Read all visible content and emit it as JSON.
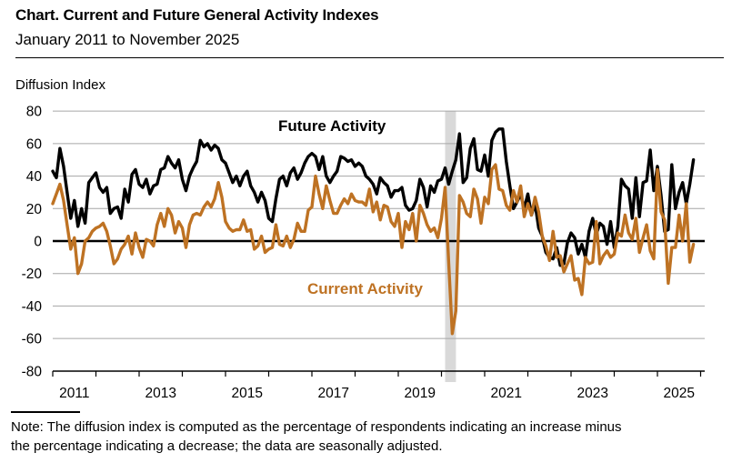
{
  "header": {
    "title": "Chart. Current and Future General Activity Indexes",
    "subtitle": "January 2011 to November 2025"
  },
  "chart": {
    "ylabel": "Diffusion Index",
    "series_labels": {
      "future": "Future Activity",
      "current": "Current Activity"
    },
    "colors": {
      "future_line": "#000000",
      "current_line": "#BE7223",
      "recession_band": "#D9D9D9",
      "gridline": "#A6A6A6",
      "zero_line": "#000000"
    },
    "yticks": [
      80,
      60,
      40,
      20,
      0,
      -20,
      -40,
      -60,
      -80
    ],
    "year_tick_years": [
      2011,
      2012,
      2013,
      2014,
      2015,
      2016,
      2017,
      2018,
      2019,
      2020,
      2021,
      2022,
      2023,
      2024,
      2025,
      2026
    ],
    "year_labels": [
      "2011",
      "2013",
      "2015",
      "2017",
      "2019",
      "2021",
      "2023",
      "2025"
    ]
  },
  "chart_data": {
    "type": "line",
    "x_unit": "month",
    "x_start": "2011-01",
    "x_end": "2025-11",
    "ylim": [
      -80,
      80
    ],
    "grid": true,
    "legend_position": "inline-labels",
    "recession_band": {
      "from": "2020-02",
      "to": "2020-05"
    },
    "series": [
      {
        "name": "Future Activity",
        "color": "#000000",
        "values": [
          43,
          39,
          57,
          46,
          30,
          14,
          25,
          9,
          20,
          11,
          36,
          39,
          42,
          33,
          30,
          33,
          17,
          20,
          21,
          14,
          32,
          24,
          41,
          44,
          35,
          33,
          38,
          29,
          34,
          35,
          44,
          45,
          52,
          48,
          45,
          50,
          38,
          31,
          40,
          45,
          49,
          62,
          58,
          60,
          56,
          59,
          57,
          50,
          48,
          42,
          36,
          40,
          34,
          40,
          43,
          34,
          30,
          24,
          30,
          25,
          14,
          12,
          26,
          38,
          40,
          34,
          42,
          45,
          38,
          42,
          48,
          52,
          54,
          52,
          44,
          52,
          40,
          36,
          40,
          43,
          52,
          51,
          49,
          50,
          46,
          48,
          46,
          40,
          38,
          35,
          29,
          39,
          36,
          34,
          27,
          31,
          31,
          33,
          22,
          19,
          20,
          25,
          38,
          33,
          21,
          34,
          30,
          37,
          38,
          45,
          35,
          43,
          50,
          66,
          36,
          39,
          57,
          63,
          44,
          43,
          53,
          40,
          62,
          67,
          69,
          69,
          49,
          34,
          20,
          24,
          29,
          20,
          29,
          16,
          23,
          8,
          3,
          -7,
          -10,
          -11,
          -4,
          -15,
          -14,
          -1,
          5,
          2,
          -8,
          -2,
          -10,
          6,
          14,
          4,
          11,
          9,
          -2,
          12,
          -4,
          9,
          38,
          34,
          32,
          14,
          39,
          15,
          36,
          37,
          56,
          31,
          46,
          28,
          6,
          7,
          47,
          20,
          30,
          36,
          23,
          35,
          50
        ]
      },
      {
        "name": "Current Activity",
        "color": "#BE7223",
        "values": [
          23,
          29,
          35,
          25,
          10,
          -5,
          2,
          -20,
          -14,
          0,
          2,
          6,
          8,
          9,
          11,
          6,
          -3,
          -14,
          -11,
          -5,
          -2,
          3,
          -8,
          5,
          -4,
          -10,
          1,
          0,
          -3,
          10,
          17,
          9,
          20,
          16,
          5,
          12,
          8,
          -4,
          10,
          16,
          17,
          16,
          21,
          24,
          21,
          26,
          36,
          27,
          12,
          8,
          6,
          7,
          7,
          13,
          6,
          7,
          -5,
          -3,
          3,
          -7,
          -5,
          -4,
          10,
          -2,
          -3,
          3,
          -4,
          1,
          11,
          6,
          6,
          19,
          21,
          40,
          29,
          20,
          34,
          25,
          17,
          17,
          22,
          26,
          23,
          29,
          25,
          24,
          24,
          22,
          32,
          18,
          24,
          13,
          22,
          21,
          12,
          9,
          17,
          -4,
          12,
          7,
          17,
          0,
          22,
          17,
          10,
          6,
          8,
          2,
          14,
          33,
          -13,
          -57,
          -43,
          28,
          24,
          17,
          15,
          32,
          26,
          11,
          27,
          23,
          44,
          47,
          32,
          31,
          22,
          19,
          31,
          24,
          34,
          15,
          23,
          16,
          27,
          18,
          3,
          -3,
          -12,
          6,
          -10,
          -9,
          -19,
          -14,
          -9,
          -24,
          -23,
          -33,
          -10,
          -14,
          -13,
          12,
          -14,
          -9,
          -6,
          -10,
          -8,
          5,
          3,
          16,
          5,
          1,
          14,
          -7,
          2,
          10,
          -6,
          -11,
          44,
          18,
          13,
          -26,
          -4,
          -4,
          16,
          0,
          23,
          -13,
          -2
        ]
      }
    ]
  },
  "note": {
    "line1": "Note: The diffusion index is computed as the percentage of respondents indicating an increase minus",
    "line2": "the percentage indicating a decrease; the data are seasonally adjusted."
  }
}
